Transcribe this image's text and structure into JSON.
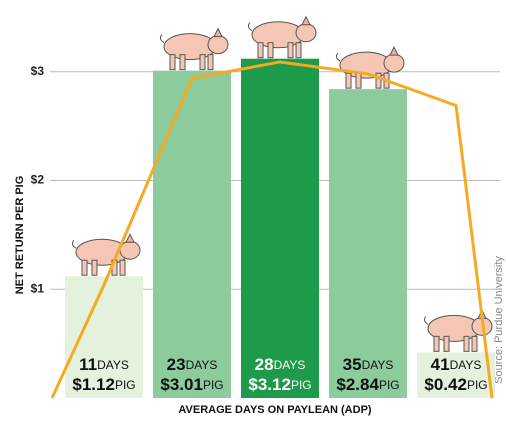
{
  "chart_data": {
    "type": "bar",
    "y_label": "NET RETURN PER PIG",
    "x_label": "AVERAGE DAYS ON PAYLEAN (ADP)",
    "source": "Source: Purdue University",
    "categories": [
      "11",
      "23",
      "28",
      "35",
      "41"
    ],
    "category_unit": "DAYS",
    "values": [
      1.12,
      3.01,
      3.12,
      2.84,
      0.42
    ],
    "value_labels": [
      "$1.12",
      "$3.01",
      "$3.12",
      "$2.84",
      "$0.42"
    ],
    "value_unit": "PIG",
    "colors": [
      "#e4f1dc",
      "#8ccb9c",
      "#1e9a4b",
      "#8ccb9c",
      "#e4f1dc"
    ],
    "label_colors": [
      "#111",
      "#111",
      "#fff",
      "#111",
      "#111"
    ],
    "line": {
      "color": "#f5aa22",
      "values": [
        1.04,
        2.94,
        3.09,
        2.98,
        2.69
      ]
    },
    "ylim": [
      0,
      3.2
    ],
    "yticks": [
      {
        "value": 1,
        "label": "$1"
      },
      {
        "value": 2,
        "label": "$2"
      },
      {
        "value": 3,
        "label": "$3"
      }
    ],
    "grid": true
  }
}
